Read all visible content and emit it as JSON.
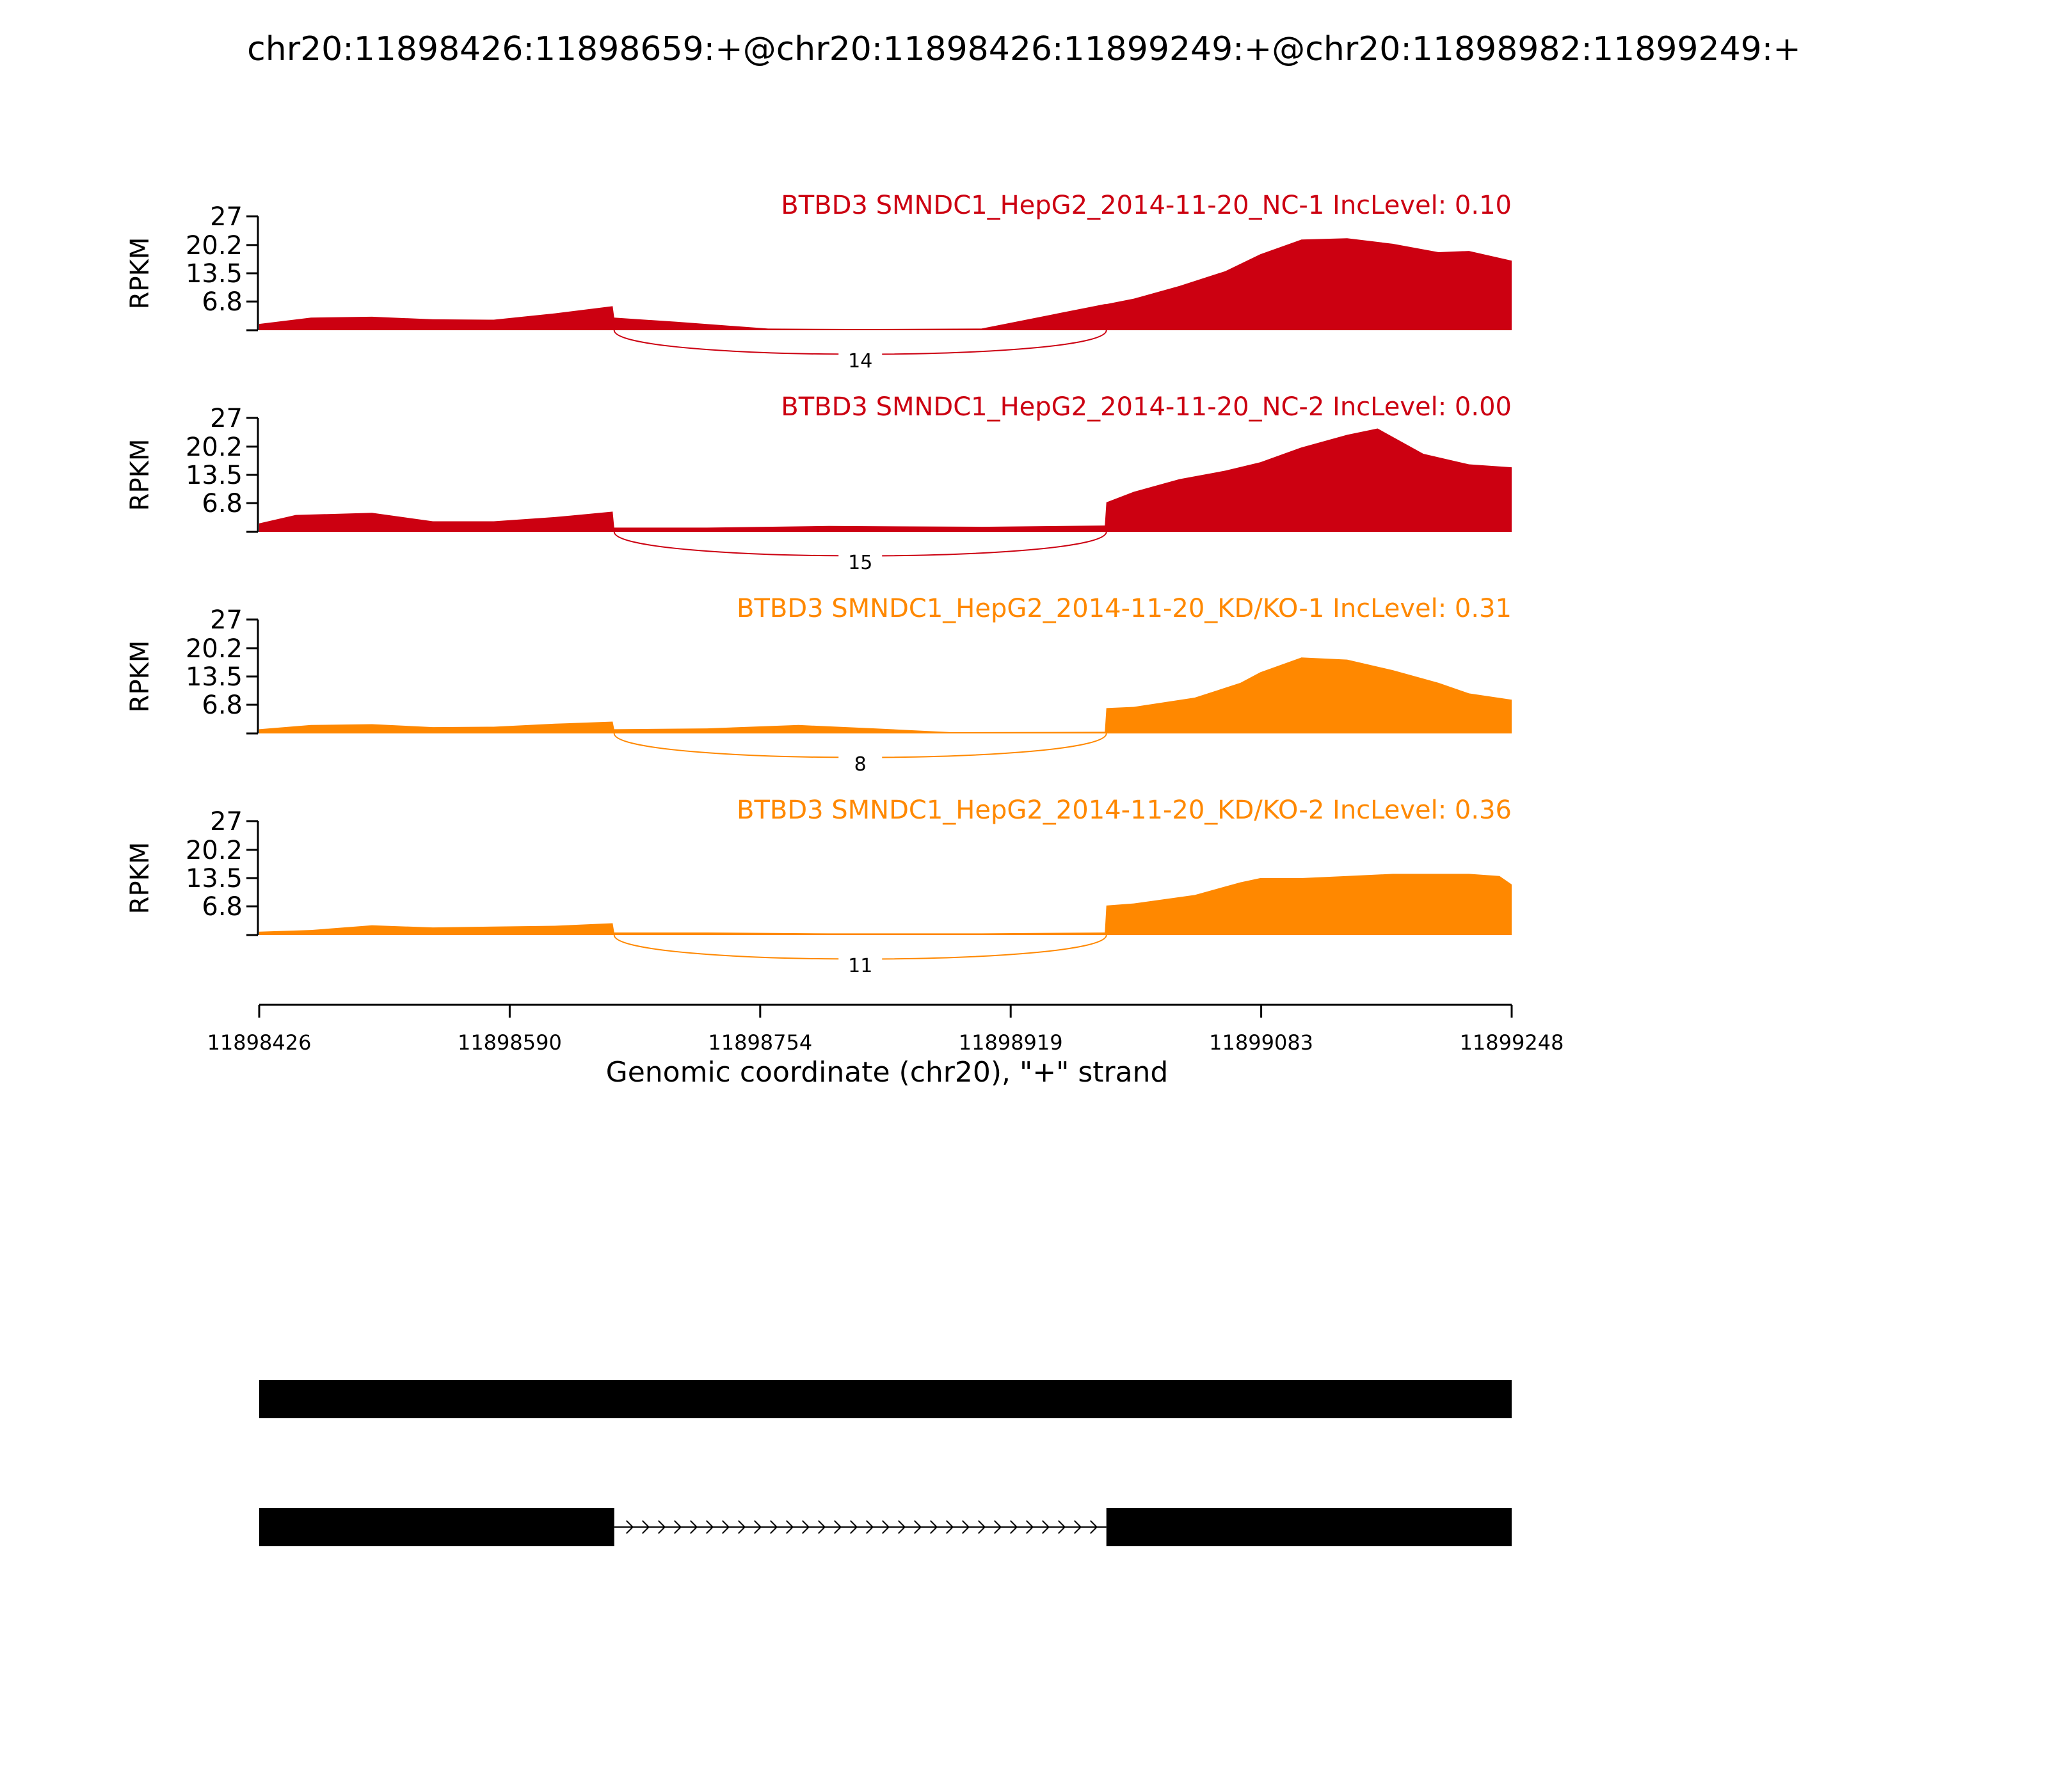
{
  "chart_data": {
    "type": "area",
    "title": "chr20:11898426:11898659:+@chr20:11898426:11899249:+@chr20:11898982:11899249:+",
    "xlabel": "Genomic coordinate (chr20), \"+\" strand",
    "ylabel": "RPKM",
    "xlim": [
      11898426,
      11899248
    ],
    "x_ticks": [
      "11898426",
      "11898590",
      "11898754",
      "11898919",
      "11899083",
      "11899248"
    ],
    "ylim": [
      0,
      27
    ],
    "y_ticks": [
      "6.8",
      "13.5",
      "20.2",
      "27"
    ],
    "exon_boundaries": {
      "exon1_end": 11898659,
      "exon3_start": 11898982
    },
    "panels": [
      {
        "label": "BTBD3 SMNDC1_HepG2_2014-11-20_NC-1 IncLevel: 0.10",
        "color": "#cc0011",
        "junction_count": "14",
        "x": [
          11898426,
          11898460,
          11898500,
          11898540,
          11898580,
          11898620,
          11898658,
          11898659,
          11898700,
          11898760,
          11898820,
          11898900,
          11898981,
          11898982,
          11899000,
          11899030,
          11899060,
          11899083,
          11899110,
          11899140,
          11899170,
          11899200,
          11899220,
          11899248
        ],
        "y": [
          1.5,
          3.0,
          3.2,
          2.6,
          2.5,
          4.0,
          5.7,
          3.0,
          2.0,
          0.4,
          0.3,
          0.4,
          6.2,
          6.2,
          7.5,
          10.5,
          14.0,
          18.0,
          21.5,
          21.8,
          20.5,
          18.5,
          18.8,
          16.5
        ]
      },
      {
        "label": "BTBD3 SMNDC1_HepG2_2014-11-20_NC-2 IncLevel: 0.00",
        "color": "#cc0011",
        "junction_count": "15",
        "x": [
          11898426,
          11898450,
          11898500,
          11898540,
          11898580,
          11898620,
          11898658,
          11898659,
          11898720,
          11898800,
          11898900,
          11898981,
          11898982,
          11899000,
          11899030,
          11899060,
          11899083,
          11899110,
          11899140,
          11899160,
          11899190,
          11899220,
          11899248
        ],
        "y": [
          2.0,
          4.0,
          4.5,
          2.5,
          2.5,
          3.5,
          4.8,
          1.0,
          1.0,
          1.4,
          1.2,
          1.5,
          7.0,
          9.5,
          12.5,
          14.5,
          16.5,
          20.0,
          23.0,
          24.5,
          18.5,
          16.0,
          15.3
        ]
      },
      {
        "label": "BTBD3 SMNDC1_HepG2_2014-11-20_KD/KO-1 IncLevel: 0.31",
        "color": "#ff8800",
        "junction_count": "8",
        "x": [
          11898426,
          11898460,
          11898500,
          11898540,
          11898580,
          11898620,
          11898658,
          11898659,
          11898720,
          11898780,
          11898830,
          11898880,
          11898981,
          11898982,
          11899000,
          11899040,
          11899070,
          11899083,
          11899110,
          11899140,
          11899170,
          11899200,
          11899220,
          11899248
        ],
        "y": [
          1.0,
          2.0,
          2.2,
          1.5,
          1.6,
          2.3,
          2.8,
          1.0,
          1.2,
          2.0,
          1.2,
          0.3,
          0.4,
          6.0,
          6.3,
          8.5,
          12.0,
          14.5,
          18.0,
          17.5,
          15.0,
          12.0,
          9.5,
          8.0
        ]
      },
      {
        "label": "BTBD3 SMNDC1_HepG2_2014-11-20_KD/KO-2 IncLevel: 0.36",
        "color": "#ff8800",
        "junction_count": "11",
        "x": [
          11898426,
          11898460,
          11898500,
          11898540,
          11898580,
          11898620,
          11898658,
          11898659,
          11898720,
          11898800,
          11898900,
          11898981,
          11898982,
          11899000,
          11899040,
          11899070,
          11899083,
          11899110,
          11899140,
          11899170,
          11899200,
          11899220,
          11899240,
          11899248
        ],
        "y": [
          0.8,
          1.2,
          2.3,
          1.8,
          2.0,
          2.2,
          2.8,
          0.6,
          0.6,
          0.4,
          0.4,
          0.6,
          7.0,
          7.5,
          9.5,
          12.5,
          13.5,
          13.5,
          14.0,
          14.5,
          14.5,
          14.5,
          14.0,
          12.0
        ]
      }
    ],
    "isoforms": [
      {
        "exons": [
          [
            11898426,
            11899248
          ]
        ]
      },
      {
        "exons": [
          [
            11898426,
            11898659
          ],
          [
            11898982,
            11899248
          ]
        ]
      }
    ]
  }
}
